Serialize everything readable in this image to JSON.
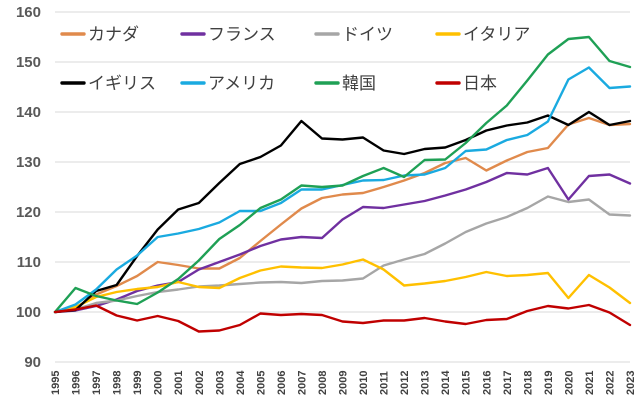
{
  "chart_data": {
    "type": "line",
    "title": "",
    "xlabel": "",
    "ylabel": "",
    "ylim": [
      90,
      160
    ],
    "yticks": [
      90,
      100,
      110,
      120,
      130,
      140,
      150,
      160
    ],
    "grid": true,
    "legend_position": "top-left, inside plot, 4 columns",
    "x": [
      "1995",
      "1996",
      "1997",
      "1998",
      "1999",
      "2000",
      "2001",
      "2002",
      "2003",
      "2004",
      "2005",
      "2006",
      "2007",
      "2008",
      "2009",
      "2010",
      "2011",
      "2012",
      "2013",
      "2014",
      "2015",
      "2016",
      "2017",
      "2018",
      "2019",
      "2020",
      "2021",
      "2022",
      "2023"
    ],
    "series": [
      {
        "name": "カナダ",
        "color": "#e08a4c",
        "values": [
          100,
          100.8,
          103.5,
          105.2,
          107.2,
          110.0,
          109.4,
          108.7,
          108.7,
          110.8,
          114.2,
          117.5,
          120.7,
          122.8,
          123.5,
          123.8,
          125.0,
          126.3,
          127.8,
          129.8,
          130.8,
          128.3,
          130.3,
          132.0,
          132.8,
          137.5,
          138.8,
          137.4,
          137.6
        ]
      },
      {
        "name": "フランス",
        "color": "#7030a0",
        "values": [
          100,
          100.3,
          101.2,
          102.5,
          104.2,
          105.3,
          106.0,
          108.5,
          110.0,
          111.5,
          113.2,
          114.5,
          115.0,
          114.8,
          118.5,
          121.0,
          120.8,
          121.5,
          122.2,
          123.3,
          124.5,
          126.0,
          127.8,
          127.5,
          128.8,
          122.5,
          127.2,
          127.5,
          125.7
        ]
      },
      {
        "name": "ドイツ",
        "color": "#a6a6a6",
        "values": [
          100,
          100.5,
          101.8,
          102.3,
          103.2,
          104.0,
          104.5,
          105.1,
          105.3,
          105.6,
          105.9,
          106.0,
          105.8,
          106.2,
          106.3,
          106.7,
          109.3,
          110.5,
          111.6,
          113.7,
          116.0,
          117.7,
          119.0,
          120.8,
          123.1,
          122.0,
          122.5,
          119.5,
          119.3
        ]
      },
      {
        "name": "イタリア",
        "color": "#ffc000",
        "values": [
          100,
          101.0,
          103.0,
          104.0,
          104.6,
          105.0,
          106.0,
          105.0,
          104.8,
          106.8,
          108.3,
          109.1,
          108.9,
          108.8,
          109.5,
          110.5,
          108.5,
          105.3,
          105.7,
          106.2,
          107.0,
          108.0,
          107.2,
          107.4,
          107.8,
          102.8,
          107.4,
          104.9,
          101.8
        ]
      },
      {
        "name": "イギリス",
        "color": "#000000",
        "values": [
          100,
          100.4,
          104.2,
          105.4,
          111.2,
          116.5,
          120.5,
          121.8,
          125.8,
          129.6,
          131.0,
          133.3,
          138.2,
          134.7,
          134.5,
          134.9,
          132.3,
          131.6,
          132.6,
          132.9,
          134.4,
          136.3,
          137.3,
          137.9,
          139.3,
          137.4,
          140.0,
          137.4,
          138.2
        ]
      },
      {
        "name": "アメリカ",
        "color": "#1aaae0",
        "values": [
          100,
          101.5,
          104.5,
          108.5,
          111.3,
          115.0,
          115.7,
          116.6,
          117.9,
          120.2,
          120.2,
          121.8,
          124.5,
          124.5,
          125.4,
          126.3,
          126.4,
          127.3,
          127.5,
          128.8,
          132.2,
          132.5,
          134.4,
          135.4,
          138.1,
          146.5,
          148.9,
          144.8,
          145.1
        ]
      },
      {
        "name": "韓国",
        "color": "#1fa055",
        "values": [
          100,
          104.8,
          103.2,
          102.3,
          101.6,
          103.9,
          106.6,
          110.3,
          114.6,
          117.4,
          120.8,
          122.5,
          125.3,
          125.0,
          125.3,
          127.2,
          128.8,
          127.0,
          130.4,
          130.5,
          133.8,
          137.8,
          141.3,
          146.3,
          151.5,
          154.6,
          155.0,
          150.2,
          149.0
        ]
      },
      {
        "name": "日本",
        "color": "#c00000",
        "values": [
          100,
          100.5,
          101.3,
          99.3,
          98.3,
          99.2,
          98.2,
          96.1,
          96.3,
          97.4,
          99.7,
          99.4,
          99.6,
          99.4,
          98.1,
          97.8,
          98.3,
          98.3,
          98.8,
          98.1,
          97.6,
          98.4,
          98.6,
          100.2,
          101.2,
          100.7,
          101.4,
          99.9,
          97.4
        ]
      }
    ]
  }
}
